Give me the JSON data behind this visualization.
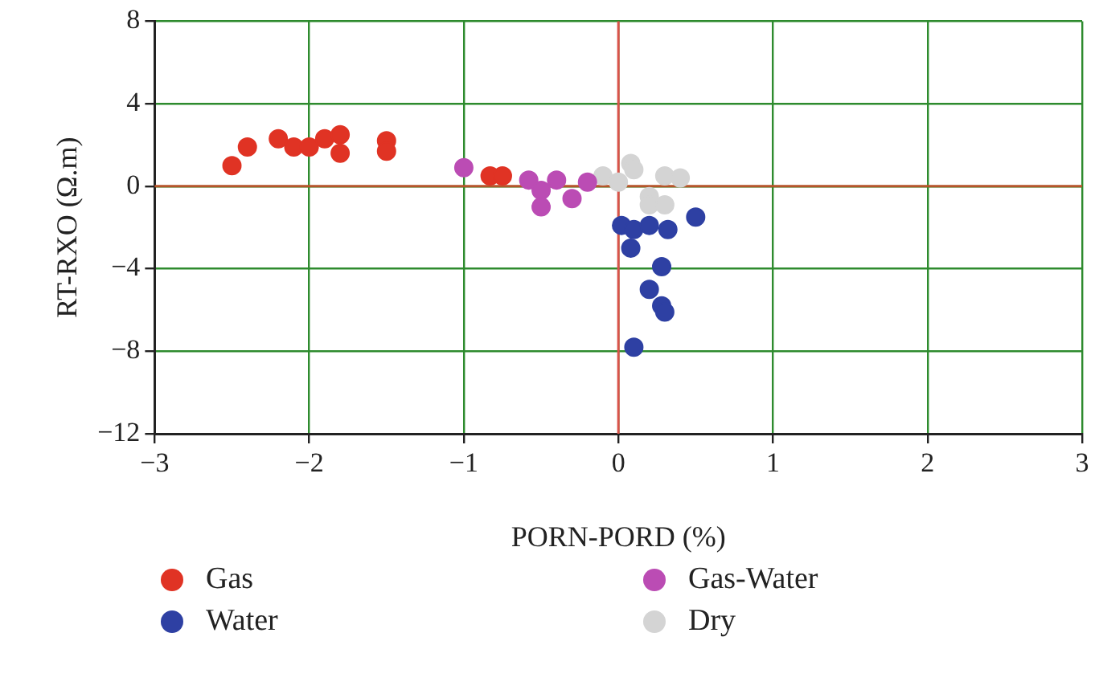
{
  "chart_data": {
    "type": "scatter",
    "xlabel": "PORN-PORD (%)",
    "ylabel": "RT-RXO (Ω.m)",
    "xlim": [
      -3,
      3
    ],
    "xticks": [
      -3,
      -2,
      -1,
      0,
      1,
      2,
      3
    ],
    "ylim": [
      -12,
      8
    ],
    "yticks": [
      -12,
      -8,
      -4,
      0,
      4,
      8
    ],
    "grid": true,
    "legend": "bottom",
    "marker": "circle",
    "ref_lines": [
      {
        "axis": "x",
        "value": 0,
        "color": "#d9534a"
      },
      {
        "axis": "y",
        "value": 0,
        "color": "#b5542a"
      }
    ],
    "series": [
      {
        "name": "Gas",
        "color": "#e03324",
        "x": [
          -2.5,
          -2.4,
          -2.2,
          -2.1,
          -2.0,
          -1.9,
          -1.8,
          -1.8,
          -1.5,
          -1.5,
          -0.83,
          -0.75
        ],
        "values": [
          1.0,
          1.9,
          2.3,
          1.9,
          1.9,
          2.3,
          2.5,
          1.6,
          2.2,
          1.7,
          0.5,
          0.5
        ]
      },
      {
        "name": "Gas-Water",
        "color": "#bb4cb4",
        "x": [
          -1.0,
          -0.58,
          -0.5,
          -0.5,
          -0.4,
          -0.3,
          -0.2
        ],
        "values": [
          0.9,
          0.3,
          -0.2,
          -1.0,
          0.3,
          -0.6,
          0.2
        ]
      },
      {
        "name": "Water",
        "color": "#2e40a3",
        "x": [
          0.02,
          0.1,
          0.08,
          0.2,
          0.32,
          0.5,
          0.28,
          0.2,
          0.28,
          0.3,
          0.1
        ],
        "values": [
          -1.9,
          -2.1,
          -3.0,
          -1.9,
          -2.1,
          -1.5,
          -3.9,
          -5.0,
          -5.8,
          -6.1,
          -7.8
        ]
      },
      {
        "name": "Dry",
        "color": "#d4d4d4",
        "x": [
          -0.1,
          0.0,
          0.08,
          0.1,
          0.2,
          0.2,
          0.3,
          0.3,
          0.4
        ],
        "values": [
          0.5,
          0.2,
          1.1,
          0.8,
          -0.5,
          -0.9,
          0.5,
          -0.9,
          0.4
        ]
      }
    ]
  }
}
